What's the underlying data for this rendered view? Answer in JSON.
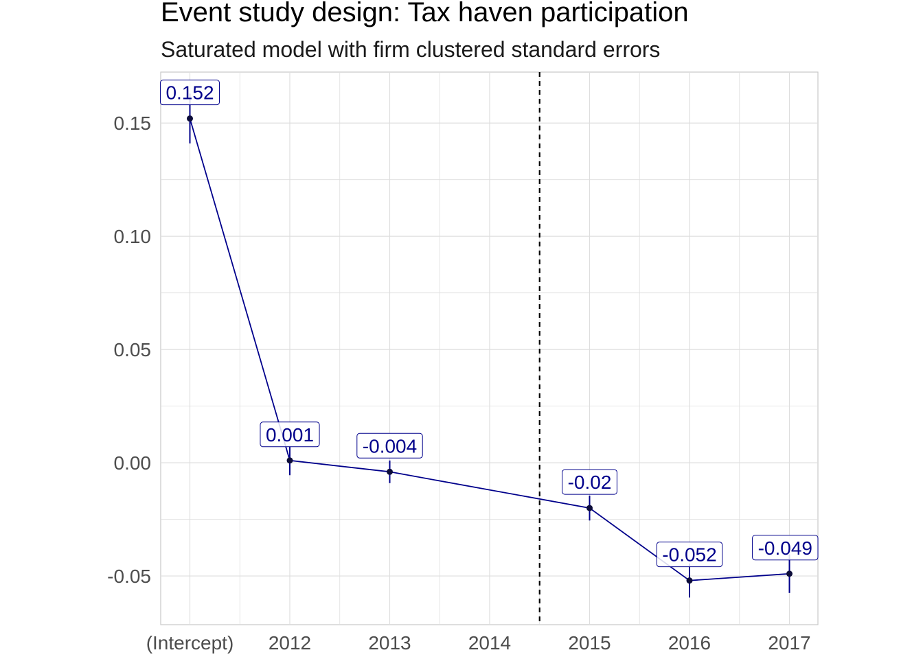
{
  "chart_data": {
    "type": "line",
    "title": "Event study design: Tax haven participation",
    "subtitle": "Saturated model with firm clustered standard errors",
    "xlabel": "",
    "ylabel": "",
    "categories": [
      "(Intercept)",
      "2012",
      "2013",
      "2014",
      "2015",
      "2016",
      "2017"
    ],
    "series": [
      {
        "points": [
          {
            "x": "(Intercept)",
            "y": 0.152,
            "lo": 0.141,
            "hi": 0.163,
            "label": "0.152"
          },
          {
            "x": "2012",
            "y": 0.001,
            "lo": -0.0055,
            "hi": 0.0075,
            "label": "0.001"
          },
          {
            "x": "2013",
            "y": -0.004,
            "lo": -0.009,
            "hi": 0.001,
            "label": "-0.004"
          },
          {
            "x": "2015",
            "y": -0.02,
            "lo": -0.0255,
            "hi": -0.0145,
            "label": "-0.02"
          },
          {
            "x": "2016",
            "y": -0.052,
            "lo": -0.0595,
            "hi": -0.0445,
            "label": "-0.052"
          },
          {
            "x": "2017",
            "y": -0.049,
            "lo": -0.0575,
            "hi": -0.0405,
            "label": "-0.049"
          }
        ]
      }
    ],
    "yticks": [
      "0.15",
      "0.10",
      "0.05",
      "0.00",
      "-0.05"
    ],
    "ytick_values": [
      0.15,
      0.1,
      0.05,
      0.0,
      -0.05
    ],
    "ylim": [
      -0.0715,
      0.1725
    ],
    "vline_between": [
      "2014",
      "2015"
    ],
    "grid": true,
    "colors": {
      "series": "#00008b",
      "point": "#0d0d3a",
      "grid": "#dedede",
      "vline": "#000000"
    }
  }
}
